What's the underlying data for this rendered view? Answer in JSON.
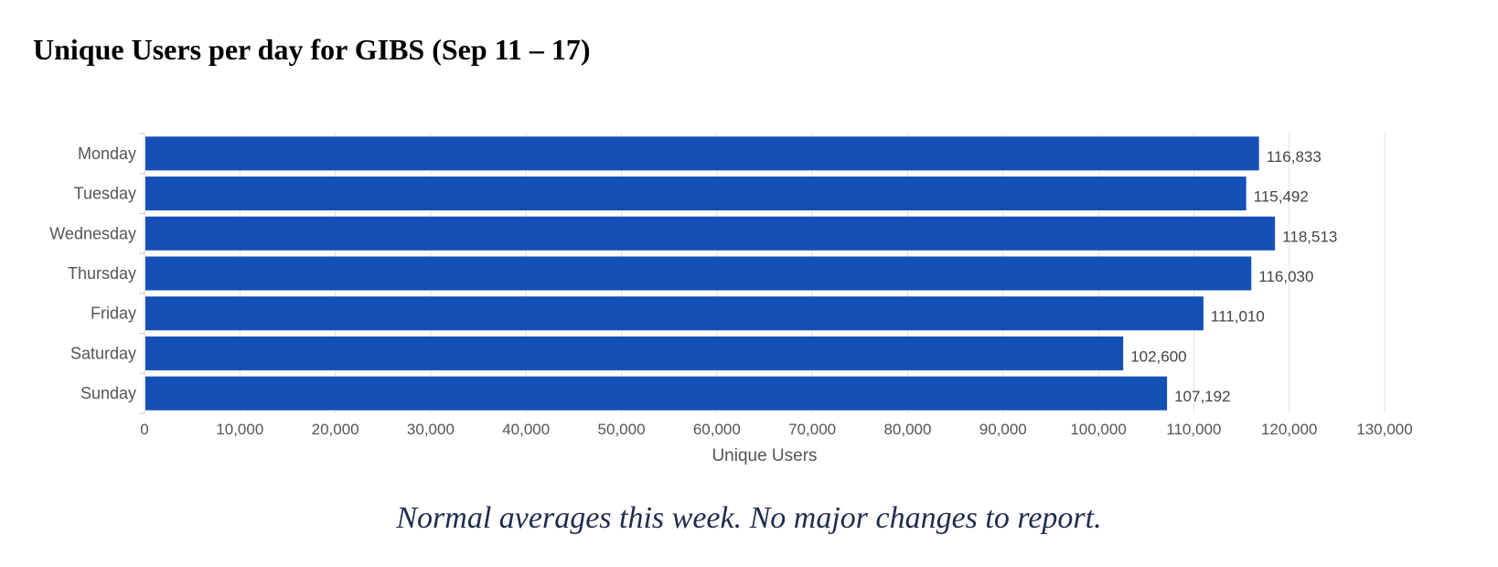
{
  "title": "Unique Users per day for GIBS (Sep 11 – 17)",
  "footer_note": "Normal averages this week.  No major changes to report.",
  "colors": {
    "bar": "#1550b6",
    "grid": "#e3e3e3",
    "axis_text": "#555555",
    "label_text": "#444444"
  },
  "chart_data": {
    "type": "bar",
    "orientation": "horizontal",
    "categories": [
      "Monday",
      "Tuesday",
      "Wednesday",
      "Thursday",
      "Friday",
      "Saturday",
      "Sunday"
    ],
    "values": [
      116833,
      115492,
      118513,
      116030,
      111010,
      102600,
      107192
    ],
    "value_labels": [
      "116,833",
      "115,492",
      "118,513",
      "116,030",
      "111,010",
      "102,600",
      "107,192"
    ],
    "xlabel": "Unique Users",
    "ylabel": "",
    "xlim": [
      0,
      130000
    ],
    "x_ticks": [
      0,
      10000,
      20000,
      30000,
      40000,
      50000,
      60000,
      70000,
      80000,
      90000,
      100000,
      110000,
      120000,
      130000
    ],
    "x_tick_labels": [
      "0",
      "10,000",
      "20,000",
      "30,000",
      "40,000",
      "50,000",
      "60,000",
      "70,000",
      "80,000",
      "90,000",
      "100,000",
      "110,000",
      "120,000",
      "130,000"
    ],
    "grid": true,
    "legend": false
  }
}
